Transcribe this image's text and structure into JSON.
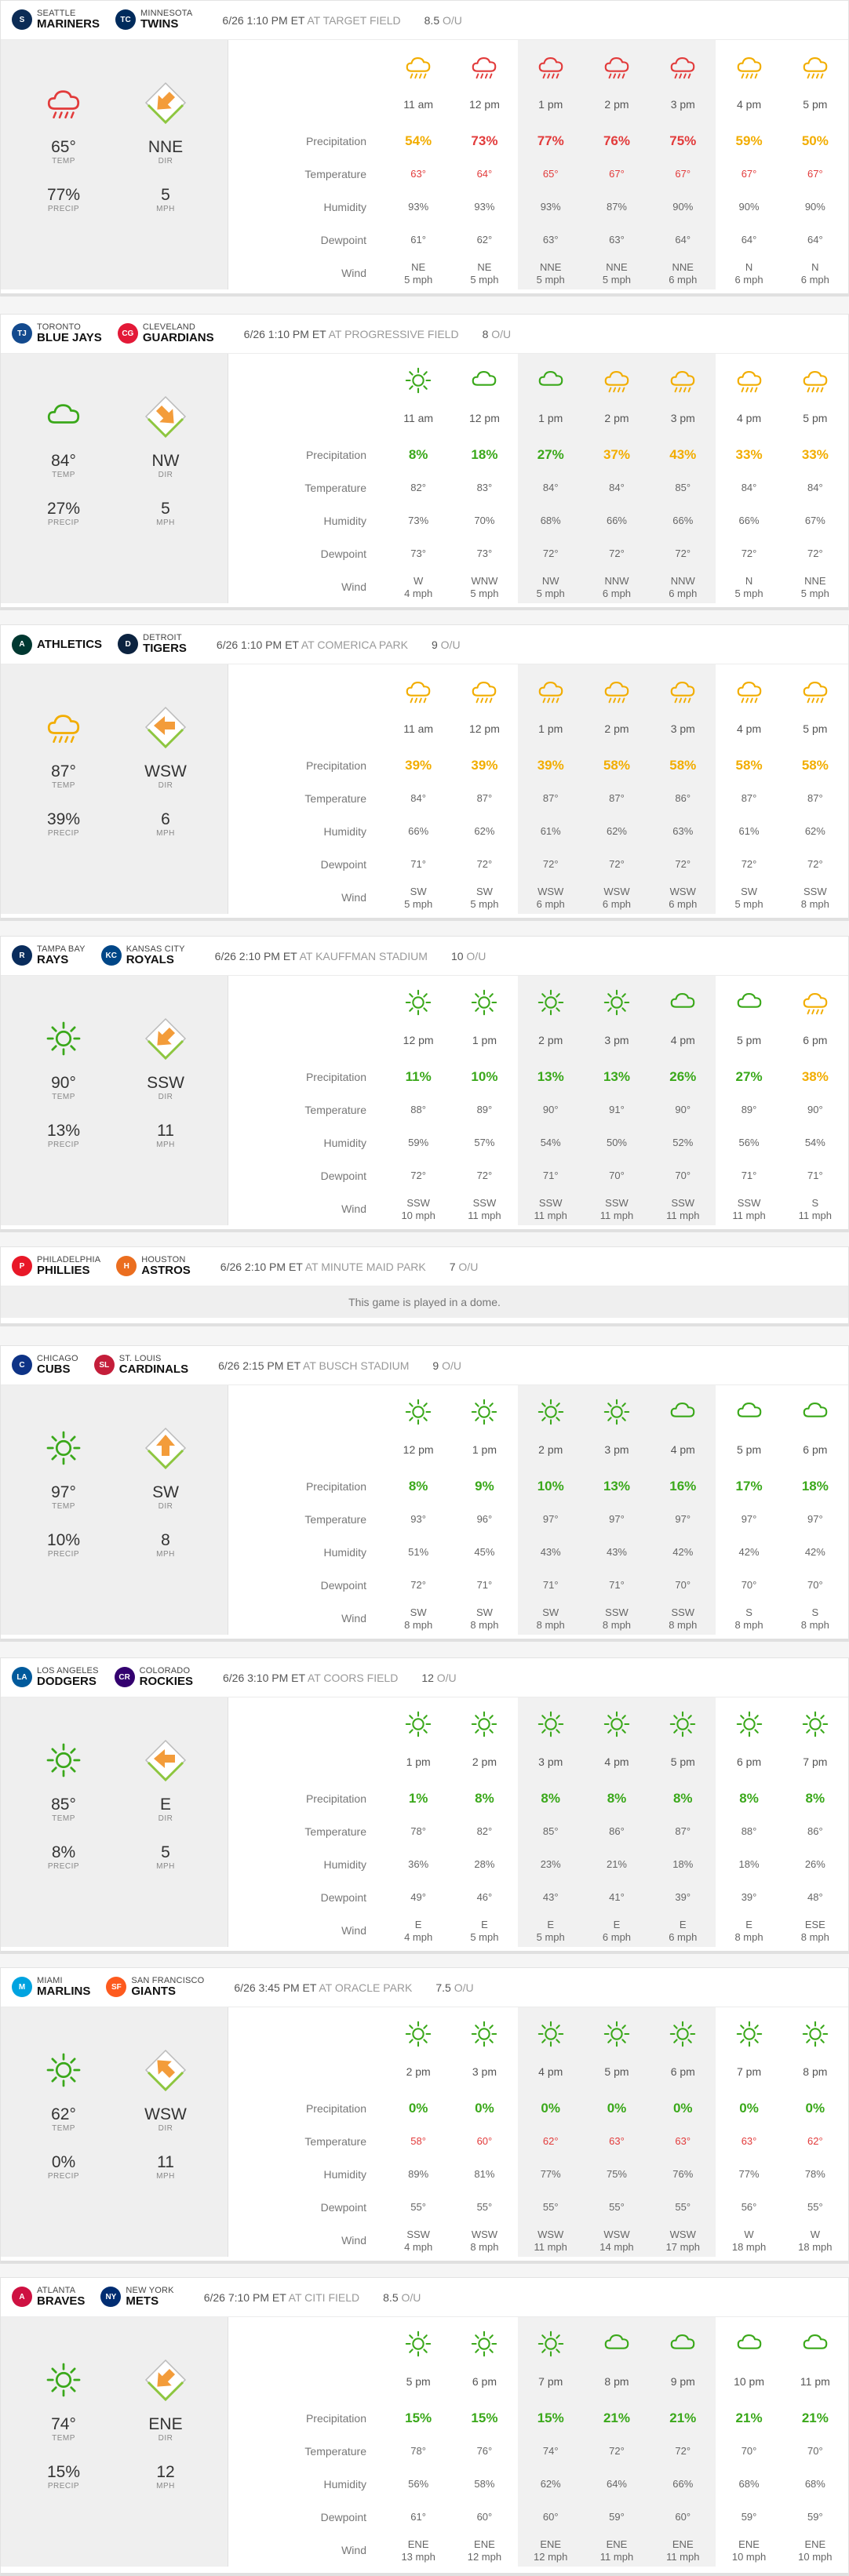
{
  "colors": {
    "green": "#3aa81a",
    "yellow": "#f2ad00",
    "red": "#e23b3b",
    "accent": "#f39c3a"
  },
  "labels": {
    "precip": "Precipitation",
    "temp": "Temperature",
    "humidity": "Humidity",
    "dewpoint": "Dewpoint",
    "wind": "Wind",
    "temp_small": "TEMP",
    "precip_small": "PRECIP",
    "dir_small": "DIR",
    "mph_small": "MPH",
    "at": "AT",
    "ou": "O/U"
  },
  "games": [
    {
      "away": {
        "city": "SEATTLE",
        "name": "MARINERS",
        "color": "#0c2c56",
        "abbr": "S"
      },
      "home": {
        "city": "MINNESOTA",
        "name": "TWINS",
        "color": "#002b5c",
        "abbr": "TC"
      },
      "time": "6/26 1:10 PM ET",
      "venue": "AT TARGET FIELD",
      "ou": "8.5",
      "summary": {
        "icon": "rain-cloud-icon",
        "temp": "65°",
        "precip": "77%",
        "dir": "NNE",
        "mph": "5",
        "arrow": "down-left"
      },
      "hours": [
        {
          "t": "11 am",
          "icon": "cloud-rain-yellow-icon",
          "p": "54%",
          "pc": "y",
          "temp": "63°",
          "tc": "tr",
          "hum": "93%",
          "dew": "61°",
          "wd": "NE",
          "ws": "5 mph"
        },
        {
          "t": "12 pm",
          "icon": "cloud-rain-red-icon",
          "p": "73%",
          "pc": "r",
          "temp": "64°",
          "tc": "tr",
          "hum": "93%",
          "dew": "62°",
          "wd": "NE",
          "ws": "5 mph"
        },
        {
          "t": "1 pm",
          "icon": "cloud-rain-red-icon",
          "p": "77%",
          "pc": "r",
          "temp": "65°",
          "tc": "tr",
          "hum": "93%",
          "dew": "63°",
          "wd": "NNE",
          "ws": "5 mph"
        },
        {
          "t": "2 pm",
          "icon": "cloud-rain-red-icon",
          "p": "76%",
          "pc": "r",
          "temp": "67°",
          "tc": "tr",
          "hum": "87%",
          "dew": "63°",
          "wd": "NNE",
          "ws": "5 mph"
        },
        {
          "t": "3 pm",
          "icon": "cloud-rain-red-icon",
          "p": "75%",
          "pc": "r",
          "temp": "67°",
          "tc": "tr",
          "hum": "90%",
          "dew": "64°",
          "wd": "NNE",
          "ws": "6 mph"
        },
        {
          "t": "4 pm",
          "icon": "cloud-rain-yellow-icon",
          "p": "59%",
          "pc": "y",
          "temp": "67°",
          "tc": "tr",
          "hum": "90%",
          "dew": "64°",
          "wd": "N",
          "ws": "6 mph"
        },
        {
          "t": "5 pm",
          "icon": "cloud-rain-yellow-icon",
          "p": "50%",
          "pc": "y",
          "temp": "67°",
          "tc": "tr",
          "hum": "90%",
          "dew": "64°",
          "wd": "N",
          "ws": "6 mph"
        }
      ]
    },
    {
      "away": {
        "city": "TORONTO",
        "name": "BLUE JAYS",
        "color": "#134a8e",
        "abbr": "TJ"
      },
      "home": {
        "city": "CLEVELAND",
        "name": "GUARDIANS",
        "color": "#e31937",
        "abbr": "CG"
      },
      "time": "6/26 1:10 PM ET",
      "venue": "AT PROGRESSIVE FIELD",
      "ou": "8",
      "summary": {
        "icon": "cloud-icon",
        "temp": "84°",
        "precip": "27%",
        "dir": "NW",
        "mph": "5",
        "arrow": "down-right"
      },
      "hours": [
        {
          "t": "11 am",
          "icon": "sun-icon",
          "p": "8%",
          "pc": "g",
          "temp": "82°",
          "tc": "",
          "hum": "73%",
          "dew": "73°",
          "wd": "W",
          "ws": "4 mph"
        },
        {
          "t": "12 pm",
          "icon": "cloud-icon",
          "p": "18%",
          "pc": "g",
          "temp": "83°",
          "tc": "",
          "hum": "70%",
          "dew": "73°",
          "wd": "WNW",
          "ws": "5 mph"
        },
        {
          "t": "1 pm",
          "icon": "cloud-icon",
          "p": "27%",
          "pc": "g",
          "temp": "84°",
          "tc": "",
          "hum": "68%",
          "dew": "72°",
          "wd": "NW",
          "ws": "5 mph"
        },
        {
          "t": "2 pm",
          "icon": "cloud-rain-yellow-icon",
          "p": "37%",
          "pc": "y",
          "temp": "84°",
          "tc": "",
          "hum": "66%",
          "dew": "72°",
          "wd": "NNW",
          "ws": "6 mph"
        },
        {
          "t": "3 pm",
          "icon": "cloud-rain-yellow-icon",
          "p": "43%",
          "pc": "y",
          "temp": "85°",
          "tc": "",
          "hum": "66%",
          "dew": "72°",
          "wd": "NNW",
          "ws": "6 mph"
        },
        {
          "t": "4 pm",
          "icon": "cloud-rain-yellow-icon",
          "p": "33%",
          "pc": "y",
          "temp": "84°",
          "tc": "",
          "hum": "66%",
          "dew": "72°",
          "wd": "N",
          "ws": "5 mph"
        },
        {
          "t": "5 pm",
          "icon": "cloud-rain-yellow-icon",
          "p": "33%",
          "pc": "y",
          "temp": "84°",
          "tc": "",
          "hum": "67%",
          "dew": "72°",
          "wd": "NNE",
          "ws": "5 mph"
        }
      ]
    },
    {
      "away": {
        "city": "",
        "name": "ATHLETICS",
        "color": "#003831",
        "abbr": "A"
      },
      "home": {
        "city": "DETROIT",
        "name": "TIGERS",
        "color": "#0c2340",
        "abbr": "D"
      },
      "time": "6/26 1:10 PM ET",
      "venue": "AT COMERICA PARK",
      "ou": "9",
      "summary": {
        "icon": "cloud-rain-yellow-icon",
        "temp": "87°",
        "precip": "39%",
        "dir": "WSW",
        "mph": "6",
        "arrow": "left"
      },
      "hours": [
        {
          "t": "11 am",
          "icon": "cloud-rain-yellow-icon",
          "p": "39%",
          "pc": "y",
          "temp": "84°",
          "tc": "",
          "hum": "66%",
          "dew": "71°",
          "wd": "SW",
          "ws": "5 mph"
        },
        {
          "t": "12 pm",
          "icon": "cloud-rain-yellow-icon",
          "p": "39%",
          "pc": "y",
          "temp": "87°",
          "tc": "",
          "hum": "62%",
          "dew": "72°",
          "wd": "SW",
          "ws": "5 mph"
        },
        {
          "t": "1 pm",
          "icon": "cloud-rain-yellow-icon",
          "p": "39%",
          "pc": "y",
          "temp": "87°",
          "tc": "",
          "hum": "61%",
          "dew": "72°",
          "wd": "WSW",
          "ws": "6 mph"
        },
        {
          "t": "2 pm",
          "icon": "cloud-rain-yellow-icon",
          "p": "58%",
          "pc": "y",
          "temp": "87°",
          "tc": "",
          "hum": "62%",
          "dew": "72°",
          "wd": "WSW",
          "ws": "6 mph"
        },
        {
          "t": "3 pm",
          "icon": "cloud-rain-yellow-icon",
          "p": "58%",
          "pc": "y",
          "temp": "86°",
          "tc": "",
          "hum": "63%",
          "dew": "72°",
          "wd": "WSW",
          "ws": "6 mph"
        },
        {
          "t": "4 pm",
          "icon": "cloud-rain-yellow-icon",
          "p": "58%",
          "pc": "y",
          "temp": "87°",
          "tc": "",
          "hum": "61%",
          "dew": "72°",
          "wd": "SW",
          "ws": "5 mph"
        },
        {
          "t": "5 pm",
          "icon": "cloud-rain-yellow-icon",
          "p": "58%",
          "pc": "y",
          "temp": "87°",
          "tc": "",
          "hum": "62%",
          "dew": "72°",
          "wd": "SSW",
          "ws": "8 mph"
        }
      ]
    },
    {
      "away": {
        "city": "TAMPA BAY",
        "name": "RAYS",
        "color": "#092c5c",
        "abbr": "R"
      },
      "home": {
        "city": "KANSAS CITY",
        "name": "ROYALS",
        "color": "#004687",
        "abbr": "KC"
      },
      "time": "6/26 2:10 PM ET",
      "venue": "AT KAUFFMAN STADIUM",
      "ou": "10",
      "summary": {
        "icon": "sun-icon",
        "temp": "90°",
        "precip": "13%",
        "dir": "SSW",
        "mph": "11",
        "arrow": "down-left"
      },
      "hours": [
        {
          "t": "12 pm",
          "icon": "sun-icon",
          "p": "11%",
          "pc": "g",
          "temp": "88°",
          "tc": "",
          "hum": "59%",
          "dew": "72°",
          "wd": "SSW",
          "ws": "10 mph"
        },
        {
          "t": "1 pm",
          "icon": "sun-icon",
          "p": "10%",
          "pc": "g",
          "temp": "89°",
          "tc": "",
          "hum": "57%",
          "dew": "72°",
          "wd": "SSW",
          "ws": "11 mph"
        },
        {
          "t": "2 pm",
          "icon": "sun-icon",
          "p": "13%",
          "pc": "g",
          "temp": "90°",
          "tc": "",
          "hum": "54%",
          "dew": "71°",
          "wd": "SSW",
          "ws": "11 mph"
        },
        {
          "t": "3 pm",
          "icon": "sun-icon",
          "p": "13%",
          "pc": "g",
          "temp": "91°",
          "tc": "",
          "hum": "50%",
          "dew": "70°",
          "wd": "SSW",
          "ws": "11 mph"
        },
        {
          "t": "4 pm",
          "icon": "cloud-icon",
          "p": "26%",
          "pc": "g",
          "temp": "90°",
          "tc": "",
          "hum": "52%",
          "dew": "70°",
          "wd": "SSW",
          "ws": "11 mph"
        },
        {
          "t": "5 pm",
          "icon": "cloud-icon",
          "p": "27%",
          "pc": "g",
          "temp": "89°",
          "tc": "",
          "hum": "56%",
          "dew": "71°",
          "wd": "SSW",
          "ws": "11 mph"
        },
        {
          "t": "6 pm",
          "icon": "cloud-rain-yellow-icon",
          "p": "38%",
          "pc": "y",
          "temp": "90°",
          "tc": "",
          "hum": "54%",
          "dew": "71°",
          "wd": "S",
          "ws": "11 mph"
        }
      ]
    },
    {
      "away": {
        "city": "PHILADELPHIA",
        "name": "PHILLIES",
        "color": "#e81828",
        "abbr": "P"
      },
      "home": {
        "city": "HOUSTON",
        "name": "ASTROS",
        "color": "#eb6e1f",
        "abbr": "H"
      },
      "time": "6/26 2:10 PM ET",
      "venue": "AT MINUTE MAID PARK",
      "ou": "7",
      "dome": "This game is played in a dome."
    },
    {
      "away": {
        "city": "CHICAGO",
        "name": "CUBS",
        "color": "#0e3386",
        "abbr": "C"
      },
      "home": {
        "city": "ST. LOUIS",
        "name": "CARDINALS",
        "color": "#c41e3a",
        "abbr": "SL"
      },
      "time": "6/26 2:15 PM ET",
      "venue": "AT BUSCH STADIUM",
      "ou": "9",
      "summary": {
        "icon": "sun-icon",
        "temp": "97°",
        "precip": "10%",
        "dir": "SW",
        "mph": "8",
        "arrow": "up"
      },
      "hours": [
        {
          "t": "12 pm",
          "icon": "sun-icon",
          "p": "8%",
          "pc": "g",
          "temp": "93°",
          "tc": "",
          "hum": "51%",
          "dew": "72°",
          "wd": "SW",
          "ws": "8 mph"
        },
        {
          "t": "1 pm",
          "icon": "sun-icon",
          "p": "9%",
          "pc": "g",
          "temp": "96°",
          "tc": "",
          "hum": "45%",
          "dew": "71°",
          "wd": "SW",
          "ws": "8 mph"
        },
        {
          "t": "2 pm",
          "icon": "sun-icon",
          "p": "10%",
          "pc": "g",
          "temp": "97°",
          "tc": "",
          "hum": "43%",
          "dew": "71°",
          "wd": "SW",
          "ws": "8 mph"
        },
        {
          "t": "3 pm",
          "icon": "sun-icon",
          "p": "13%",
          "pc": "g",
          "temp": "97°",
          "tc": "",
          "hum": "43%",
          "dew": "71°",
          "wd": "SSW",
          "ws": "8 mph"
        },
        {
          "t": "4 pm",
          "icon": "cloud-icon",
          "p": "16%",
          "pc": "g",
          "temp": "97°",
          "tc": "",
          "hum": "42%",
          "dew": "70°",
          "wd": "SSW",
          "ws": "8 mph"
        },
        {
          "t": "5 pm",
          "icon": "cloud-icon",
          "p": "17%",
          "pc": "g",
          "temp": "97°",
          "tc": "",
          "hum": "42%",
          "dew": "70°",
          "wd": "S",
          "ws": "8 mph"
        },
        {
          "t": "6 pm",
          "icon": "cloud-icon",
          "p": "18%",
          "pc": "g",
          "temp": "97°",
          "tc": "",
          "hum": "42%",
          "dew": "70°",
          "wd": "S",
          "ws": "8 mph"
        }
      ]
    },
    {
      "away": {
        "city": "LOS ANGELES",
        "name": "DODGERS",
        "color": "#005a9c",
        "abbr": "LA"
      },
      "home": {
        "city": "COLORADO",
        "name": "ROCKIES",
        "color": "#33006f",
        "abbr": "CR"
      },
      "time": "6/26 3:10 PM ET",
      "venue": "AT COORS FIELD",
      "ou": "12",
      "summary": {
        "icon": "sun-icon",
        "temp": "85°",
        "precip": "8%",
        "dir": "E",
        "mph": "5",
        "arrow": "left"
      },
      "hours": [
        {
          "t": "1 pm",
          "icon": "sun-icon",
          "p": "1%",
          "pc": "g",
          "temp": "78°",
          "tc": "",
          "hum": "36%",
          "dew": "49°",
          "wd": "E",
          "ws": "4 mph"
        },
        {
          "t": "2 pm",
          "icon": "sun-icon",
          "p": "8%",
          "pc": "g",
          "temp": "82°",
          "tc": "",
          "hum": "28%",
          "dew": "46°",
          "wd": "E",
          "ws": "5 mph"
        },
        {
          "t": "3 pm",
          "icon": "sun-icon",
          "p": "8%",
          "pc": "g",
          "temp": "85°",
          "tc": "",
          "hum": "23%",
          "dew": "43°",
          "wd": "E",
          "ws": "5 mph"
        },
        {
          "t": "4 pm",
          "icon": "sun-icon",
          "p": "8%",
          "pc": "g",
          "temp": "86°",
          "tc": "",
          "hum": "21%",
          "dew": "41°",
          "wd": "E",
          "ws": "6 mph"
        },
        {
          "t": "5 pm",
          "icon": "sun-icon",
          "p": "8%",
          "pc": "g",
          "temp": "87°",
          "tc": "",
          "hum": "18%",
          "dew": "39°",
          "wd": "E",
          "ws": "6 mph"
        },
        {
          "t": "6 pm",
          "icon": "sun-icon",
          "p": "8%",
          "pc": "g",
          "temp": "88°",
          "tc": "",
          "hum": "18%",
          "dew": "39°",
          "wd": "E",
          "ws": "8 mph"
        },
        {
          "t": "7 pm",
          "icon": "sun-icon",
          "p": "8%",
          "pc": "g",
          "temp": "86°",
          "tc": "",
          "hum": "26%",
          "dew": "48°",
          "wd": "ESE",
          "ws": "8 mph"
        }
      ]
    },
    {
      "away": {
        "city": "MIAMI",
        "name": "MARLINS",
        "color": "#00a3e0",
        "abbr": "M"
      },
      "home": {
        "city": "SAN FRANCISCO",
        "name": "GIANTS",
        "color": "#fd5a1e",
        "abbr": "SF"
      },
      "time": "6/26 3:45 PM ET",
      "venue": "AT ORACLE PARK",
      "ou": "7.5",
      "summary": {
        "icon": "sun-icon",
        "temp": "62°",
        "precip": "0%",
        "dir": "WSW",
        "mph": "11",
        "arrow": "up-left"
      },
      "hours": [
        {
          "t": "2 pm",
          "icon": "sun-icon",
          "p": "0%",
          "pc": "g",
          "temp": "58°",
          "tc": "tr",
          "hum": "89%",
          "dew": "55°",
          "wd": "SSW",
          "ws": "4 mph"
        },
        {
          "t": "3 pm",
          "icon": "sun-icon",
          "p": "0%",
          "pc": "g",
          "temp": "60°",
          "tc": "tr",
          "hum": "81%",
          "dew": "55°",
          "wd": "WSW",
          "ws": "8 mph"
        },
        {
          "t": "4 pm",
          "icon": "sun-icon",
          "p": "0%",
          "pc": "g",
          "temp": "62°",
          "tc": "tr",
          "hum": "77%",
          "dew": "55°",
          "wd": "WSW",
          "ws": "11 mph"
        },
        {
          "t": "5 pm",
          "icon": "sun-icon",
          "p": "0%",
          "pc": "g",
          "temp": "63°",
          "tc": "tr",
          "hum": "75%",
          "dew": "55°",
          "wd": "WSW",
          "ws": "14 mph"
        },
        {
          "t": "6 pm",
          "icon": "sun-icon",
          "p": "0%",
          "pc": "g",
          "temp": "63°",
          "tc": "tr",
          "hum": "76%",
          "dew": "55°",
          "wd": "WSW",
          "ws": "17 mph"
        },
        {
          "t": "7 pm",
          "icon": "sun-icon",
          "p": "0%",
          "pc": "g",
          "temp": "63°",
          "tc": "tr",
          "hum": "77%",
          "dew": "56°",
          "wd": "W",
          "ws": "18 mph"
        },
        {
          "t": "8 pm",
          "icon": "sun-icon",
          "p": "0%",
          "pc": "g",
          "temp": "62°",
          "tc": "tr",
          "hum": "78%",
          "dew": "55°",
          "wd": "W",
          "ws": "18 mph"
        }
      ]
    },
    {
      "away": {
        "city": "ATLANTA",
        "name": "BRAVES",
        "color": "#ce1141",
        "abbr": "A"
      },
      "home": {
        "city": "NEW YORK",
        "name": "METS",
        "color": "#002d72",
        "abbr": "NY"
      },
      "time": "6/26 7:10 PM ET",
      "venue": "AT CITI FIELD",
      "ou": "8.5",
      "summary": {
        "icon": "sun-icon",
        "temp": "74°",
        "precip": "15%",
        "dir": "ENE",
        "mph": "12",
        "arrow": "down-left"
      },
      "hours": [
        {
          "t": "5 pm",
          "icon": "sun-icon",
          "p": "15%",
          "pc": "g",
          "temp": "78°",
          "tc": "",
          "hum": "56%",
          "dew": "61°",
          "wd": "ENE",
          "ws": "13 mph"
        },
        {
          "t": "6 pm",
          "icon": "sun-icon",
          "p": "15%",
          "pc": "g",
          "temp": "76°",
          "tc": "",
          "hum": "58%",
          "dew": "60°",
          "wd": "ENE",
          "ws": "12 mph"
        },
        {
          "t": "7 pm",
          "icon": "sun-icon",
          "p": "15%",
          "pc": "g",
          "temp": "74°",
          "tc": "",
          "hum": "62%",
          "dew": "60°",
          "wd": "ENE",
          "ws": "12 mph"
        },
        {
          "t": "8 pm",
          "icon": "cloud-icon",
          "p": "21%",
          "pc": "g",
          "temp": "72°",
          "tc": "",
          "hum": "64%",
          "dew": "59°",
          "wd": "ENE",
          "ws": "11 mph"
        },
        {
          "t": "9 pm",
          "icon": "cloud-icon",
          "p": "21%",
          "pc": "g",
          "temp": "72°",
          "tc": "",
          "hum": "66%",
          "dew": "60°",
          "wd": "ENE",
          "ws": "11 mph"
        },
        {
          "t": "10 pm",
          "icon": "cloud-icon",
          "p": "21%",
          "pc": "g",
          "temp": "70°",
          "tc": "",
          "hum": "68%",
          "dew": "59°",
          "wd": "ENE",
          "ws": "10 mph"
        },
        {
          "t": "11 pm",
          "icon": "cloud-icon",
          "p": "21%",
          "pc": "g",
          "temp": "70°",
          "tc": "",
          "hum": "68%",
          "dew": "59°",
          "wd": "ENE",
          "ws": "10 mph"
        }
      ]
    }
  ]
}
